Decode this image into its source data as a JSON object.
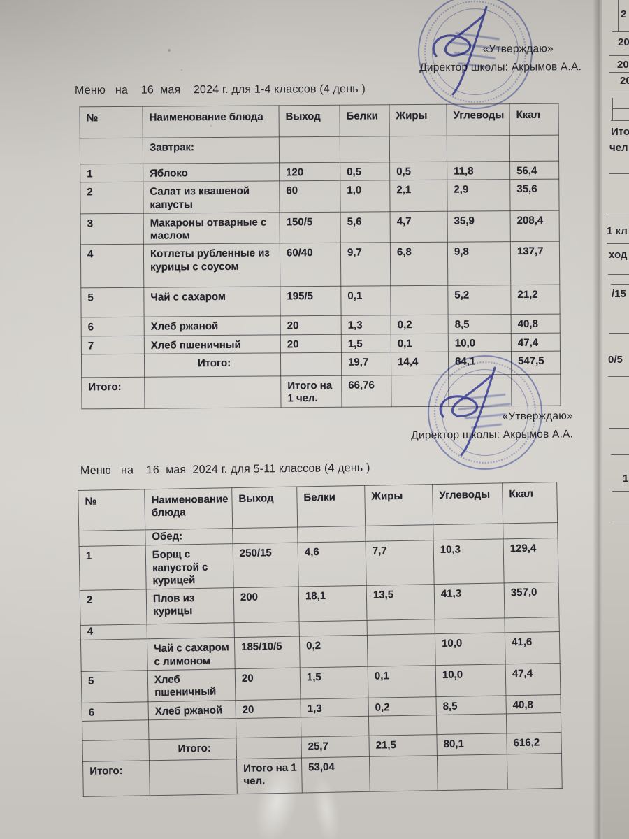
{
  "document": {
    "approvals": [
      {
        "approve_label": "«Утверждаю»",
        "director_line": "Директор школы: Акрымов А.А."
      },
      {
        "approve_label": "«Утверждаю»",
        "director_line": "Директор школы: Акрымов А.А."
      }
    ],
    "menus": [
      {
        "title": "Меню   на    16  мая    2024 г. для 1-4 классов (4 день )",
        "headers": [
          "№",
          "Наименование блюда",
          "Выход",
          "Белки",
          "Жиры",
          "Углеводы",
          "Ккал"
        ],
        "rows": [
          [
            "",
            "Завтрак:",
            "",
            "",
            "",
            "",
            ""
          ],
          [
            "1",
            "Яблоко",
            "120",
            "0,5",
            "0,5",
            "11,8",
            "56,4"
          ],
          [
            "2",
            "Салат из квашеной капусты",
            "60",
            "1,0",
            "2,1",
            "2,9",
            "35,6"
          ],
          [
            "3",
            "Макароны отварные с маслом",
            "150/5",
            "5,6",
            "4,7",
            "35,9",
            "208,4"
          ],
          [
            "4",
            "Котлеты  рубленные из курицы с соусом",
            "60/40",
            "9,7",
            "6,8",
            "9,8",
            "137,7"
          ],
          [
            "5",
            "Чай с сахаром",
            "195/5",
            "0,1",
            "",
            "5,2",
            "21,2"
          ],
          [
            "6",
            "Хлеб ржаной",
            "20",
            "1,3",
            "0,2",
            "8,5",
            "40,8"
          ],
          [
            "7",
            "Хлеб пшеничный",
            "20",
            "1,5",
            "0,1",
            "10,0",
            "47,4"
          ],
          [
            "",
            "Итого:",
            "",
            "19,7",
            "14,4",
            "84,1",
            "547,5"
          ],
          [
            "Итого:",
            "",
            "Итого на 1 чел.",
            "66,76",
            "",
            "",
            ""
          ]
        ]
      },
      {
        "title": "Меню   на    16  мая  2024 г. для 5-11 классов (4 день )",
        "headers": [
          "№",
          "Наименование блюда",
          "Выход",
          "Белки",
          "Жиры",
          "Углеводы",
          "Ккал"
        ],
        "rows": [
          [
            "",
            "Обед:",
            "",
            "",
            "",
            "",
            ""
          ],
          [
            "1",
            "Борщ с капустой с курицей",
            "250/15",
            "4,6",
            "7,7",
            "10,3",
            "129,4"
          ],
          [
            "2",
            "Плов из курицы",
            "200",
            "18,1",
            "13,5",
            "41,3",
            "357,0"
          ],
          [
            "4",
            "",
            "",
            "",
            "",
            "",
            ""
          ],
          [
            "",
            "Чай с сахаром с лимоном",
            "185/10/5",
            "0,2",
            "",
            "10,0",
            "41,6"
          ],
          [
            "5",
            "Хлеб пшеничный",
            "20",
            "1,5",
            "0,1",
            "10,0",
            "47,4"
          ],
          [
            "6",
            "Хлеб  ржаной",
            "20",
            "1,3",
            "0,2",
            "8,5",
            "40,8"
          ],
          [
            "",
            "",
            "",
            "",
            "",
            "",
            ""
          ],
          [
            "",
            "Итого:",
            "",
            "25,7",
            "21,5",
            "80,1",
            "616,2"
          ],
          [
            "Итого:",
            "",
            "Итого на 1 чел.",
            "53,04",
            "",
            "",
            ""
          ]
        ]
      }
    ],
    "adjacent_page_fragments": [
      "2",
      "20",
      "20",
      "20",
      "Ито",
      "чел",
      "1 кл",
      "ход",
      "/15",
      "0/5",
      "1"
    ]
  }
}
